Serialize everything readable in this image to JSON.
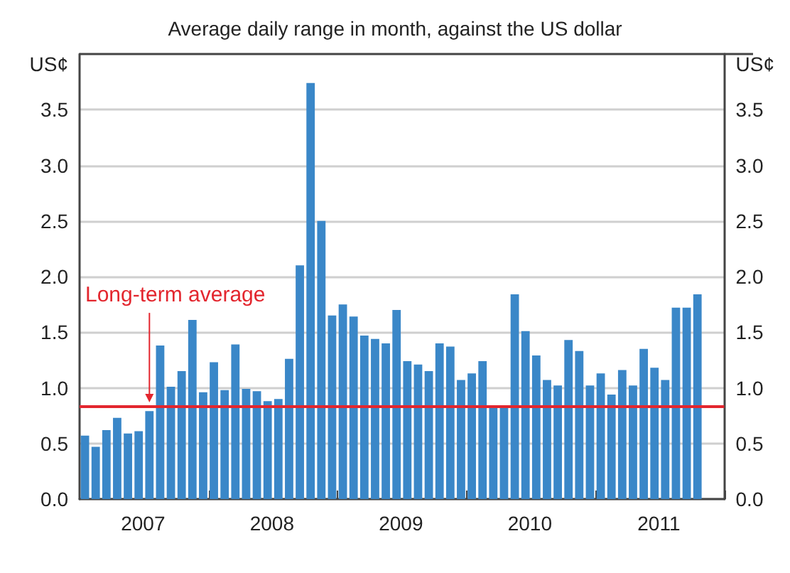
{
  "chart_data": {
    "type": "bar",
    "title": "Average daily range in month, against the US dollar",
    "ylabel": "US¢",
    "y2label": "US¢",
    "categories": [
      null,
      null,
      null,
      null,
      null,
      null,
      "2007",
      null,
      null,
      null,
      null,
      null,
      null,
      null,
      null,
      null,
      null,
      null,
      "2008",
      null,
      null,
      null,
      null,
      null,
      null,
      null,
      null,
      null,
      null,
      null,
      "2009",
      null,
      null,
      null,
      null,
      null,
      null,
      null,
      null,
      null,
      null,
      null,
      "2010",
      null,
      null,
      null,
      null,
      null,
      null,
      null,
      null,
      null,
      null,
      null,
      "2011",
      null,
      null,
      null,
      null,
      null
    ],
    "values": [
      0.57,
      0.47,
      0.62,
      0.73,
      0.59,
      0.61,
      0.79,
      1.38,
      1.01,
      1.15,
      1.61,
      0.96,
      1.23,
      0.98,
      1.39,
      0.99,
      0.97,
      0.88,
      0.9,
      1.26,
      2.1,
      3.74,
      2.5,
      1.65,
      1.75,
      1.64,
      1.47,
      1.44,
      1.4,
      1.7,
      1.24,
      1.21,
      1.15,
      1.4,
      1.37,
      1.07,
      1.13,
      1.24,
      0.84,
      0.84,
      1.84,
      1.51,
      1.29,
      1.07,
      1.02,
      1.43,
      1.33,
      1.02,
      1.13,
      0.94,
      1.16,
      1.02,
      1.35,
      1.18,
      1.07,
      1.72,
      1.72,
      1.84,
      null,
      null
    ],
    "color": "#3a87c8",
    "ylim": [
      0,
      4
    ],
    "yticks": [
      {
        "value": 0,
        "label": "0.0"
      },
      {
        "value": 0.5,
        "label": "0.5"
      },
      {
        "value": 1,
        "label": "1.0"
      },
      {
        "value": 1.5,
        "label": "1.5"
      },
      {
        "value": 2,
        "label": "2.0"
      },
      {
        "value": 2.5,
        "label": "2.5"
      },
      {
        "value": 3,
        "label": "3.0"
      },
      {
        "value": 3.5,
        "label": "3.5"
      }
    ],
    "y2lim": [
      0,
      4
    ],
    "y2ticks": [
      {
        "value": 0,
        "label": "0.0"
      },
      {
        "value": 0.5,
        "label": "0.5"
      },
      {
        "value": 1,
        "label": "1.0"
      },
      {
        "value": 1.5,
        "label": "1.5"
      },
      {
        "value": 2,
        "label": "2.0"
      },
      {
        "value": 2.5,
        "label": "2.5"
      },
      {
        "value": 3,
        "label": "3.0"
      },
      {
        "value": 3.5,
        "label": "3.5"
      }
    ],
    "ref_lines": [
      {
        "axis": "y",
        "value": 0.83,
        "label": "Long-term average",
        "color": "#e3262e"
      }
    ],
    "grid": "y"
  }
}
